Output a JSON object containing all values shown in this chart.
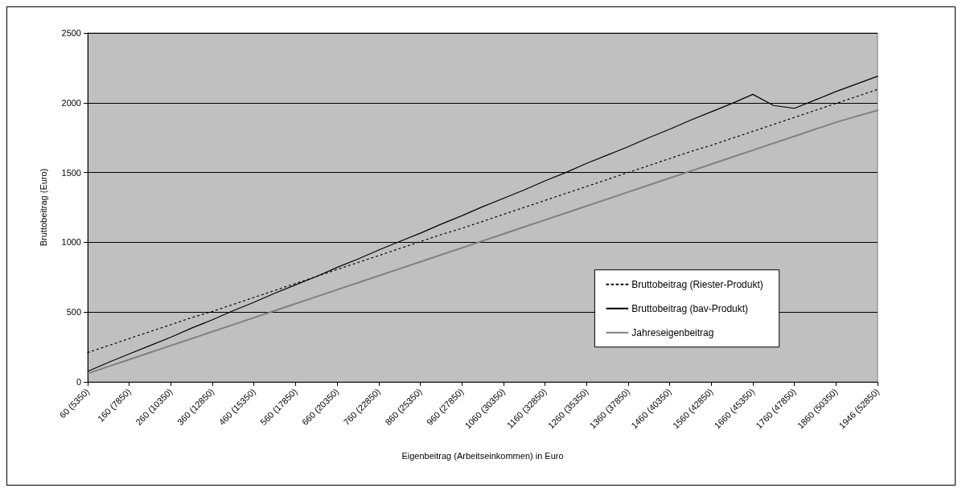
{
  "chart_data": {
    "type": "line",
    "xlabel": "Eigenbeitrag (Arbeitseinkommen) in Euro",
    "ylabel": "Bruttobeitrag (Euro)",
    "categories": [
      "60 (5350)",
      null,
      "160 (7850)",
      null,
      "260 (10350)",
      null,
      "360 (12850)",
      null,
      "460 (15350)",
      null,
      "560 (17850)",
      null,
      "660 (20350)",
      null,
      "760 (22850)",
      null,
      "860 (25350)",
      null,
      "960 (27850)",
      null,
      "1060 (30350)",
      null,
      "1160 (32850)",
      null,
      "1260 (35350)",
      null,
      "1360 (37850)",
      null,
      "1460 (40350)",
      null,
      "1560 (42850)",
      null,
      "1660 (45350)",
      null,
      "1760 (47850)",
      null,
      "1860 (50350)",
      null,
      "1946 (52850)"
    ],
    "series": [
      {
        "name": "Bruttobeitrag (Riester-Produkt)",
        "color": "#000000",
        "line_style": "dotted",
        "values": [
          210,
          260,
          310,
          360,
          410,
          460,
          505,
          555,
          605,
          655,
          705,
          755,
          805,
          855,
          905,
          955,
          1005,
          1055,
          1100,
          1150,
          1200,
          1250,
          1300,
          1350,
          1400,
          1450,
          1500,
          1550,
          1600,
          1650,
          1695,
          1745,
          1795,
          1845,
          1895,
          1945,
          1995,
          2045,
          2095
        ]
      },
      {
        "name": "Bruttobeitrag (bav-Produkt)",
        "color": "#000000",
        "line_style": "solid",
        "values": [
          75,
          140,
          200,
          260,
          320,
          385,
          445,
          510,
          570,
          635,
          695,
          755,
          820,
          880,
          945,
          1005,
          1065,
          1130,
          1190,
          1255,
          1315,
          1375,
          1440,
          1500,
          1565,
          1625,
          1685,
          1750,
          1810,
          1875,
          1935,
          1995,
          2060,
          1980,
          1960,
          2020,
          2080,
          2135,
          2190
        ]
      },
      {
        "name": "Jahreseigenbeitrag",
        "color": "#808080",
        "line_style": "solid",
        "values": [
          60,
          110,
          160,
          210,
          260,
          310,
          360,
          410,
          460,
          510,
          560,
          610,
          660,
          710,
          760,
          810,
          860,
          910,
          960,
          1010,
          1060,
          1110,
          1160,
          1210,
          1260,
          1310,
          1360,
          1410,
          1460,
          1510,
          1560,
          1610,
          1660,
          1710,
          1760,
          1810,
          1860,
          1903,
          1946
        ]
      }
    ],
    "ylim": [
      0,
      2500
    ],
    "yticks": [
      0,
      500,
      1000,
      1500,
      2000,
      2500
    ],
    "grid": "y",
    "legend": "right",
    "marker": "none"
  }
}
